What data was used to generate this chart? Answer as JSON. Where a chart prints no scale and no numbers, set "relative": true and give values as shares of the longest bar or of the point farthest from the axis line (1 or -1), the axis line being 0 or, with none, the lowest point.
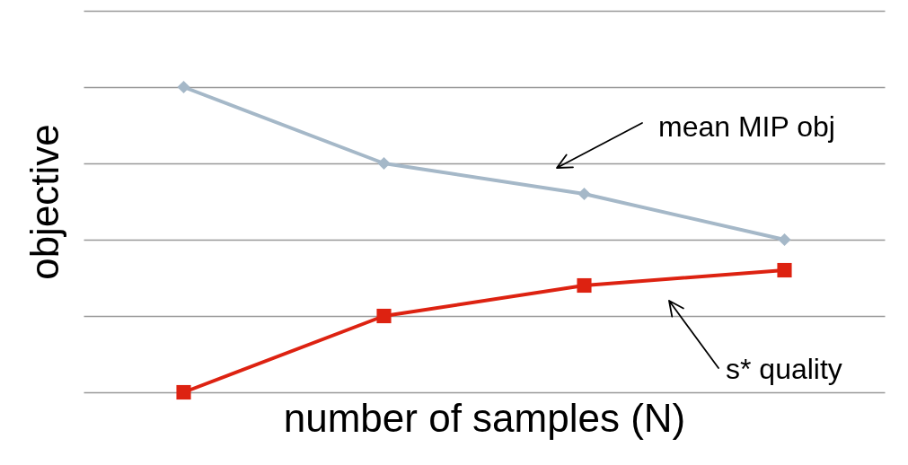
{
  "chart_data": {
    "type": "line",
    "relative": true,
    "xlabel": "number of samples (N)",
    "ylabel": "objective",
    "categories": [
      null,
      null,
      null,
      null
    ],
    "series": [
      {
        "name": "mean MIP obj",
        "color": "#a5b8c8",
        "marker": "diamond",
        "values": [
          1,
          0.75,
          0.65,
          0.5
        ]
      },
      {
        "name": "s* quality",
        "color": "#dd2211",
        "marker": "square",
        "values": [
          0,
          0.25,
          0.35,
          0.4
        ]
      }
    ],
    "grid": "y",
    "tick_labels": false
  }
}
